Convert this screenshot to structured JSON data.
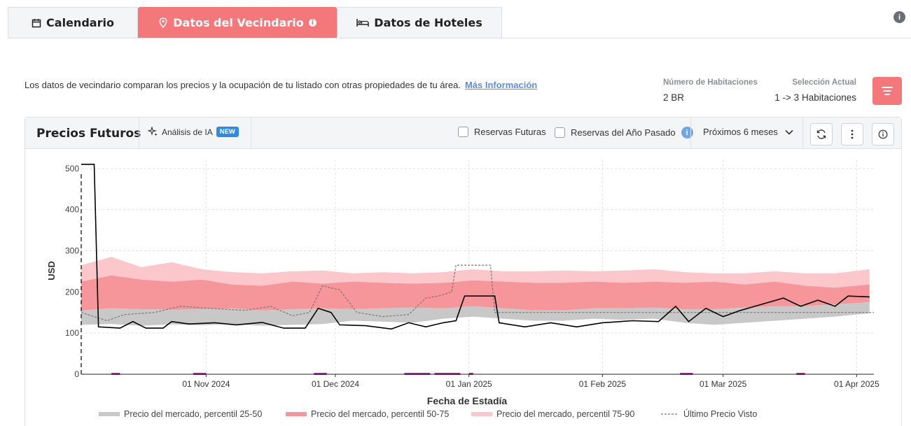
{
  "tabs": [
    {
      "label": "Calendario",
      "icon": "calendar-icon",
      "active": false
    },
    {
      "label": "Datos del Vecindario",
      "icon": "location-pin-icon",
      "active": true
    },
    {
      "label": "Datos de Hoteles",
      "icon": "bed-icon",
      "active": false
    }
  ],
  "description": {
    "text": "Los datos de vecindario comparan los precios y la ocupación de tu listado con otras propiedades de tu área.",
    "link": "Más Información"
  },
  "stats": {
    "rooms_label": "Número de Habitaciones",
    "rooms_value": "2 BR",
    "selection_label": "Selección Actual",
    "selection_value": "1 -> 3 Habitaciones"
  },
  "panel": {
    "title": "Precios Futuros",
    "ai_label": "Análisis de IA",
    "ai_badge": "NEW",
    "checkbox_future": "Reservas Futuras",
    "checkbox_last_year": "Reservas del Año Pasado",
    "range_select": "Próximos 6 meses"
  },
  "colors": {
    "accent": "#f4777a",
    "band_25_50": "#c8c8c8",
    "band_50_75": "#f6959a",
    "band_75_90": "#fbc7ca",
    "price_line": "#000000",
    "last_seen_line": "#777777",
    "booking_marker": "#e400e4"
  },
  "chart_data": {
    "type": "area",
    "ylabel": "USD",
    "xlabel": "Fecha de Estadía",
    "ylim": [
      0,
      520
    ],
    "yticks": [
      0,
      100,
      200,
      300,
      400,
      500
    ],
    "xlim": [
      "2024-10-03",
      "2025-04-05"
    ],
    "xticks": [
      {
        "date": "2024-11-01",
        "label": "01 Nov 2024"
      },
      {
        "date": "2024-12-01",
        "label": "01 Dec 2024"
      },
      {
        "date": "2025-01-01",
        "label": "01 Jan 2025"
      },
      {
        "date": "2025-02-01",
        "label": "01 Feb 2025"
      },
      {
        "date": "2025-03-01",
        "label": "01 Mar 2025"
      },
      {
        "date": "2025-04-01",
        "label": "01 Apr 2025"
      }
    ],
    "grid": true,
    "legend_position": "bottom",
    "series": [
      {
        "name": "Precio del mercado, percentil 25-50",
        "kind": "band",
        "dates": [
          "2024-10-03",
          "2024-10-10",
          "2024-10-17",
          "2024-10-24",
          "2024-10-31",
          "2024-11-07",
          "2024-11-14",
          "2024-11-21",
          "2024-11-28",
          "2024-12-05",
          "2024-12-12",
          "2024-12-19",
          "2024-12-26",
          "2025-01-02",
          "2025-01-09",
          "2025-01-16",
          "2025-01-23",
          "2025-01-30",
          "2025-02-06",
          "2025-02-13",
          "2025-02-20",
          "2025-02-27",
          "2025-03-06",
          "2025-03-13",
          "2025-03-20",
          "2025-03-27",
          "2025-04-04"
        ],
        "lower": [
          120,
          122,
          118,
          121,
          119,
          122,
          118,
          120,
          122,
          130,
          128,
          125,
          135,
          140,
          135,
          130,
          130,
          135,
          132,
          135,
          125,
          120,
          125,
          130,
          135,
          140,
          148
        ],
        "upper": [
          155,
          160,
          158,
          157,
          158,
          160,
          155,
          158,
          160,
          158,
          160,
          162,
          160,
          165,
          160,
          155,
          155,
          160,
          160,
          162,
          158,
          158,
          162,
          165,
          165,
          170,
          175
        ]
      },
      {
        "name": "Precio del mercado, percentil 50-75",
        "kind": "band",
        "dates": [
          "2024-10-03",
          "2024-10-10",
          "2024-10-17",
          "2024-10-24",
          "2024-10-31",
          "2024-11-07",
          "2024-11-14",
          "2024-11-21",
          "2024-11-28",
          "2024-12-05",
          "2024-12-12",
          "2024-12-19",
          "2024-12-26",
          "2025-01-02",
          "2025-01-09",
          "2025-01-16",
          "2025-01-23",
          "2025-01-30",
          "2025-02-06",
          "2025-02-13",
          "2025-02-20",
          "2025-02-27",
          "2025-03-06",
          "2025-03-13",
          "2025-03-20",
          "2025-03-27",
          "2025-04-04"
        ],
        "lower": [
          155,
          160,
          158,
          157,
          158,
          160,
          155,
          158,
          160,
          158,
          160,
          162,
          160,
          165,
          160,
          155,
          155,
          160,
          160,
          162,
          158,
          158,
          162,
          165,
          165,
          170,
          175
        ],
        "upper": [
          225,
          240,
          230,
          225,
          230,
          218,
          215,
          225,
          220,
          225,
          222,
          220,
          222,
          228,
          225,
          222,
          222,
          225,
          222,
          225,
          222,
          225,
          218,
          225,
          215,
          210,
          218
        ]
      },
      {
        "name": "Precio del mercado, percentil 75-90",
        "kind": "band",
        "dates": [
          "2024-10-03",
          "2024-10-10",
          "2024-10-17",
          "2024-10-24",
          "2024-10-31",
          "2024-11-07",
          "2024-11-14",
          "2024-11-21",
          "2024-11-28",
          "2024-12-05",
          "2024-12-12",
          "2024-12-19",
          "2024-12-26",
          "2025-01-02",
          "2025-01-09",
          "2025-01-16",
          "2025-01-23",
          "2025-01-30",
          "2025-02-06",
          "2025-02-13",
          "2025-02-20",
          "2025-02-27",
          "2025-03-06",
          "2025-03-13",
          "2025-03-20",
          "2025-03-27",
          "2025-04-04"
        ],
        "lower": [
          225,
          240,
          230,
          225,
          230,
          218,
          215,
          225,
          220,
          225,
          222,
          220,
          222,
          228,
          225,
          222,
          222,
          225,
          222,
          225,
          222,
          225,
          218,
          225,
          215,
          210,
          218
        ],
        "upper": [
          265,
          285,
          260,
          272,
          255,
          248,
          245,
          250,
          252,
          245,
          248,
          245,
          248,
          255,
          250,
          250,
          252,
          250,
          252,
          255,
          248,
          245,
          245,
          250,
          245,
          245,
          255
        ]
      },
      {
        "name": "",
        "kind": "line",
        "points": [
          [
            "2024-10-03",
            510
          ],
          [
            "2024-10-06",
            510
          ],
          [
            "2024-10-07",
            115
          ],
          [
            "2024-10-12",
            112
          ],
          [
            "2024-10-15",
            128
          ],
          [
            "2024-10-18",
            112
          ],
          [
            "2024-10-22",
            112
          ],
          [
            "2024-10-24",
            128
          ],
          [
            "2024-10-28",
            122
          ],
          [
            "2024-11-03",
            125
          ],
          [
            "2024-11-08",
            120
          ],
          [
            "2024-11-14",
            126
          ],
          [
            "2024-11-19",
            112
          ],
          [
            "2024-11-24",
            112
          ],
          [
            "2024-11-27",
            160
          ],
          [
            "2024-11-30",
            150
          ],
          [
            "2024-12-02",
            120
          ],
          [
            "2024-12-08",
            118
          ],
          [
            "2024-12-14",
            110
          ],
          [
            "2024-12-18",
            125
          ],
          [
            "2024-12-22",
            115
          ],
          [
            "2024-12-26",
            125
          ],
          [
            "2024-12-29",
            130
          ],
          [
            "2024-12-31",
            190
          ],
          [
            "2025-01-05",
            190
          ],
          [
            "2025-01-07",
            190
          ],
          [
            "2025-01-08",
            125
          ],
          [
            "2025-01-14",
            115
          ],
          [
            "2025-01-20",
            125
          ],
          [
            "2025-01-26",
            115
          ],
          [
            "2025-02-01",
            125
          ],
          [
            "2025-02-08",
            130
          ],
          [
            "2025-02-14",
            128
          ],
          [
            "2025-02-18",
            165
          ],
          [
            "2025-02-21",
            128
          ],
          [
            "2025-02-25",
            160
          ],
          [
            "2025-03-01",
            140
          ],
          [
            "2025-03-05",
            155
          ],
          [
            "2025-03-10",
            170
          ],
          [
            "2025-03-15",
            185
          ],
          [
            "2025-03-19",
            165
          ],
          [
            "2025-03-23",
            180
          ],
          [
            "2025-03-27",
            165
          ],
          [
            "2025-03-30",
            190
          ],
          [
            "2025-04-04",
            188
          ]
        ]
      },
      {
        "name": "Último Precio Visto",
        "kind": "dashed",
        "points": [
          [
            "2024-10-03",
            150
          ],
          [
            "2024-10-09",
            130
          ],
          [
            "2024-10-13",
            145
          ],
          [
            "2024-10-20",
            150
          ],
          [
            "2024-10-26",
            165
          ],
          [
            "2024-11-02",
            160
          ],
          [
            "2024-11-10",
            155
          ],
          [
            "2024-11-16",
            165
          ],
          [
            "2024-11-21",
            142
          ],
          [
            "2024-11-25",
            150
          ],
          [
            "2024-11-28",
            215
          ],
          [
            "2024-12-02",
            205
          ],
          [
            "2024-12-06",
            150
          ],
          [
            "2024-12-12",
            140
          ],
          [
            "2024-12-18",
            145
          ],
          [
            "2024-12-22",
            185
          ],
          [
            "2024-12-25",
            190
          ],
          [
            "2024-12-28",
            200
          ],
          [
            "2024-12-29",
            265
          ],
          [
            "2025-01-06",
            265
          ],
          [
            "2025-01-07",
            150
          ],
          [
            "2025-04-05",
            150
          ]
        ]
      }
    ],
    "booking_markers": [
      [
        "2024-10-10",
        "2024-10-12"
      ],
      [
        "2024-10-29",
        "2024-11-01"
      ],
      [
        "2024-11-26",
        "2024-11-29"
      ],
      [
        "2024-12-17",
        "2024-12-23"
      ],
      [
        "2024-12-24",
        "2024-12-30"
      ],
      [
        "2025-01-01",
        "2025-01-02"
      ],
      [
        "2025-02-19",
        "2025-02-22"
      ],
      [
        "2025-03-18",
        "2025-03-20"
      ]
    ],
    "legend": [
      {
        "label": "Precio del mercado, percentil 25-50",
        "style": "band_25_50"
      },
      {
        "label": "Precio del mercado, percentil 50-75",
        "style": "band_50_75"
      },
      {
        "label": "Precio del mercado, percentil 75-90",
        "style": "band_75_90"
      },
      {
        "label": "Último Precio Visto",
        "style": "dashed"
      }
    ]
  }
}
